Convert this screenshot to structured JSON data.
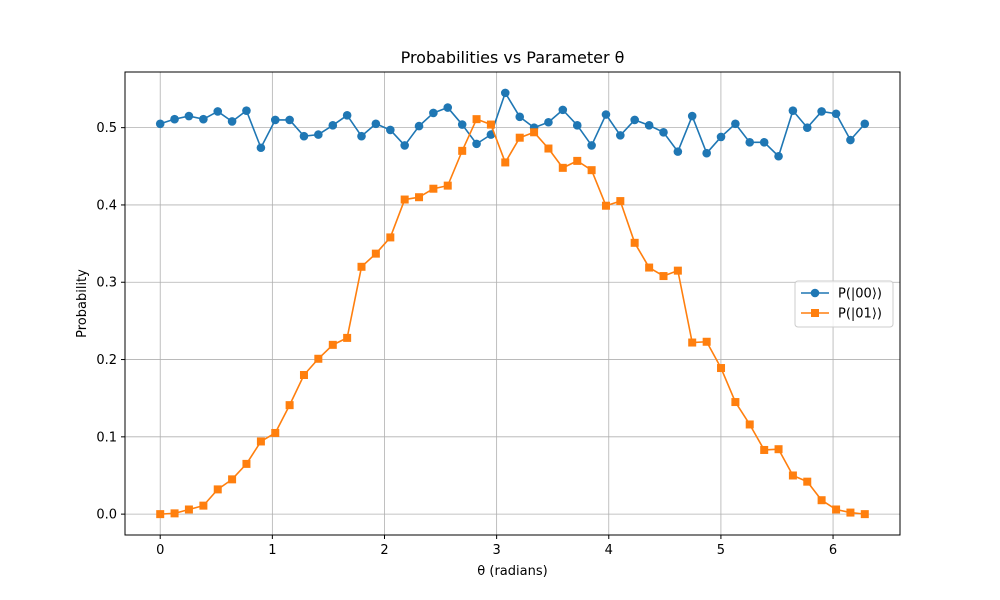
{
  "chart_data": {
    "type": "line",
    "title": "Probabilities vs Parameter θ",
    "xlabel": "θ (radians)",
    "ylabel": "Probability",
    "xlim": [
      -0.314,
      6.597
    ],
    "ylim": [
      -0.027,
      0.572
    ],
    "xticks": [
      0,
      1,
      2,
      3,
      4,
      5,
      6
    ],
    "xtick_labels": [
      "0",
      "1",
      "2",
      "3",
      "4",
      "5",
      "6"
    ],
    "yticks": [
      0.0,
      0.1,
      0.2,
      0.3,
      0.4,
      0.5
    ],
    "ytick_labels": [
      "0.0",
      "0.1",
      "0.2",
      "0.3",
      "0.4",
      "0.5"
    ],
    "grid": true,
    "legend_position": "center-right",
    "x": [
      0.0,
      0.128,
      0.256,
      0.385,
      0.513,
      0.641,
      0.769,
      0.898,
      1.026,
      1.154,
      1.282,
      1.41,
      1.539,
      1.667,
      1.795,
      1.923,
      2.052,
      2.18,
      2.308,
      2.436,
      2.564,
      2.693,
      2.821,
      2.949,
      3.077,
      3.206,
      3.334,
      3.462,
      3.59,
      3.719,
      3.847,
      3.975,
      4.103,
      4.231,
      4.36,
      4.488,
      4.616,
      4.744,
      4.873,
      5.001,
      5.129,
      5.257,
      5.386,
      5.514,
      5.642,
      5.77,
      5.898,
      6.027,
      6.155,
      6.283
    ],
    "series": [
      {
        "name": "P(|00⟩)",
        "color": "#1f77b4",
        "marker": "circle",
        "values": [
          0.505,
          0.511,
          0.515,
          0.511,
          0.521,
          0.508,
          0.522,
          0.474,
          0.51,
          0.51,
          0.489,
          0.491,
          0.503,
          0.516,
          0.489,
          0.505,
          0.497,
          0.477,
          0.502,
          0.519,
          0.526,
          0.504,
          0.479,
          0.491,
          0.545,
          0.514,
          0.5,
          0.507,
          0.523,
          0.503,
          0.477,
          0.517,
          0.49,
          0.51,
          0.503,
          0.494,
          0.469,
          0.515,
          0.467,
          0.488,
          0.505,
          0.481,
          0.481,
          0.463,
          0.522,
          0.5,
          0.521,
          0.518,
          0.484,
          0.505
        ]
      },
      {
        "name": "P(|01⟩)",
        "color": "#ff7f0e",
        "marker": "square",
        "values": [
          0.0,
          0.001,
          0.006,
          0.011,
          0.032,
          0.045,
          0.065,
          0.094,
          0.105,
          0.141,
          0.18,
          0.201,
          0.219,
          0.228,
          0.32,
          0.337,
          0.358,
          0.407,
          0.41,
          0.421,
          0.425,
          0.47,
          0.511,
          0.504,
          0.455,
          0.487,
          0.494,
          0.473,
          0.448,
          0.457,
          0.445,
          0.399,
          0.405,
          0.351,
          0.319,
          0.308,
          0.315,
          0.222,
          0.223,
          0.189,
          0.145,
          0.116,
          0.083,
          0.084,
          0.05,
          0.042,
          0.018,
          0.006,
          0.002,
          0.0
        ]
      }
    ]
  }
}
